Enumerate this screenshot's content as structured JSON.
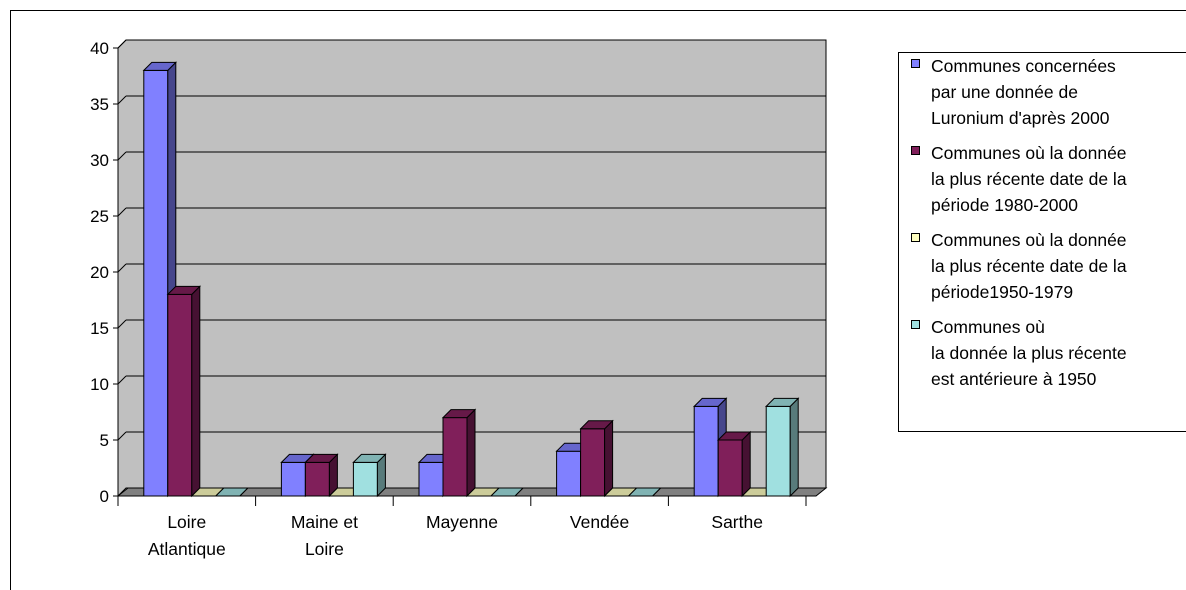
{
  "chart_data": {
    "type": "bar",
    "categories": [
      "Loire Atlantique",
      "Maine et Loire",
      "Mayenne",
      "Vendée",
      "Sarthe"
    ],
    "category_lines": [
      [
        "Loire",
        "Atlantique"
      ],
      [
        "Maine et",
        "Loire"
      ],
      [
        "Mayenne"
      ],
      [
        "Vendée"
      ],
      [
        "Sarthe"
      ]
    ],
    "series": [
      {
        "name": "Communes concernées par une donnée de Luronium d'après 2000",
        "values": [
          38,
          3,
          3,
          4,
          8
        ],
        "color": "#8080ff"
      },
      {
        "name": "Communes où la donnée la plus récente date de la période 1980-2000",
        "values": [
          18,
          3,
          7,
          6,
          5
        ],
        "color": "#801f5a"
      },
      {
        "name": "Communes où la donnée la plus récente date de la période1950-1979",
        "values": [
          0,
          0,
          0,
          0,
          0
        ],
        "color": "#ffffc0"
      },
      {
        "name": "Communes où la donnée la plus récente est antérieure à 1950",
        "values": [
          0,
          3,
          0,
          0,
          8
        ],
        "color": "#a0e0e0"
      }
    ],
    "legend_lines": [
      "Communes concernées\npar une donnée de\nLuronium d'après 2000",
      "Communes où la donnée\nla plus récente date de la\npériode 1980-2000",
      "Communes où la donnée\nla plus récente date de la\npériode1950-1979",
      "Communes où\nla donnée la plus récente\nest  antérieure à 1950"
    ],
    "yticks": [
      "0",
      "5",
      "10",
      "15",
      "20",
      "25",
      "30",
      "35",
      "40"
    ],
    "ylim": [
      0,
      40
    ],
    "grid": true,
    "legend_position": "right",
    "title": "",
    "xlabel": "",
    "ylabel": "",
    "wall_color": "#c0c0c0",
    "floor_color": "#808080"
  }
}
